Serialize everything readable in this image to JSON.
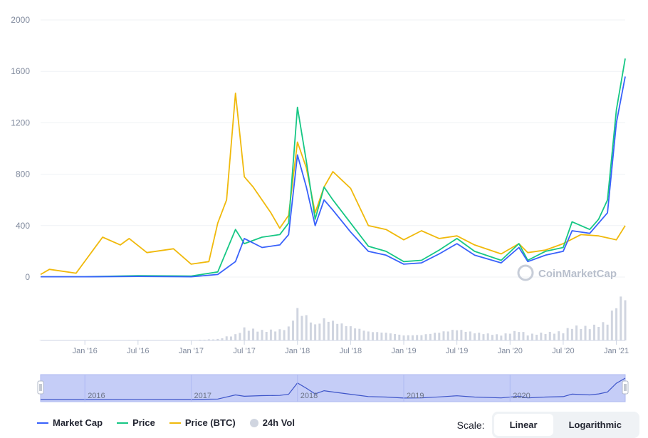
{
  "chart_data": {
    "type": "line",
    "yticks": [
      "2000",
      "1600",
      "1200",
      "800",
      "400",
      "0"
    ],
    "ylim": [
      0,
      2000
    ],
    "x_range": [
      "2015-08",
      "2021-02"
    ],
    "xticks": [
      "Jan '16",
      "Jul '16",
      "Jan '17",
      "Jul '17",
      "Jan '18",
      "Jul '18",
      "Jan '19",
      "Jul '19",
      "Jan '20",
      "Jul '20",
      "Jan '21"
    ],
    "navigator_ticks": [
      "2016",
      "2017",
      "2018",
      "2019",
      "2020"
    ],
    "grid": true,
    "legend_position": "bottom-left",
    "series": [
      {
        "name": "Market Cap",
        "color": "#3861fb",
        "x": [
          "2015-08",
          "2016-01",
          "2016-07",
          "2017-01",
          "2017-04",
          "2017-06",
          "2017-07",
          "2017-09",
          "2017-11",
          "2017-12",
          "2018-01",
          "2018-02",
          "2018-03",
          "2018-04",
          "2018-05",
          "2018-07",
          "2018-09",
          "2018-11",
          "2019-01",
          "2019-03",
          "2019-05",
          "2019-07",
          "2019-09",
          "2019-12",
          "2020-02",
          "2020-03",
          "2020-05",
          "2020-07",
          "2020-08",
          "2020-10",
          "2020-11",
          "2020-12",
          "2021-01",
          "2021-02"
        ],
        "values": [
          2,
          2,
          5,
          2,
          20,
          120,
          300,
          230,
          250,
          330,
          950,
          700,
          400,
          600,
          520,
          350,
          200,
          170,
          100,
          110,
          180,
          260,
          170,
          110,
          230,
          120,
          170,
          200,
          360,
          340,
          420,
          500,
          1200,
          1560
        ]
      },
      {
        "name": "Price",
        "color": "#16c784",
        "x": [
          "2015-08",
          "2016-01",
          "2016-07",
          "2017-01",
          "2017-04",
          "2017-06",
          "2017-07",
          "2017-09",
          "2017-11",
          "2017-12",
          "2018-01",
          "2018-02",
          "2018-03",
          "2018-04",
          "2018-05",
          "2018-07",
          "2018-09",
          "2018-11",
          "2019-01",
          "2019-03",
          "2019-05",
          "2019-07",
          "2019-09",
          "2019-12",
          "2020-02",
          "2020-03",
          "2020-05",
          "2020-07",
          "2020-08",
          "2020-10",
          "2020-11",
          "2020-12",
          "2021-01",
          "2021-02"
        ],
        "values": [
          2,
          2,
          10,
          8,
          40,
          370,
          260,
          310,
          330,
          420,
          1320,
          900,
          450,
          700,
          600,
          420,
          240,
          200,
          120,
          130,
          210,
          300,
          200,
          130,
          260,
          130,
          200,
          230,
          430,
          370,
          450,
          600,
          1300,
          1700
        ]
      },
      {
        "name": "Price (BTC)",
        "color": "#f0b90b",
        "x": [
          "2015-08",
          "2015-09",
          "2015-12",
          "2016-03",
          "2016-05",
          "2016-06",
          "2016-08",
          "2016-11",
          "2017-01",
          "2017-03",
          "2017-04",
          "2017-05",
          "2017-06",
          "2017-07",
          "2017-08",
          "2017-10",
          "2017-11",
          "2017-12",
          "2018-01",
          "2018-02",
          "2018-03",
          "2018-04",
          "2018-05",
          "2018-07",
          "2018-09",
          "2018-11",
          "2019-01",
          "2019-03",
          "2019-05",
          "2019-07",
          "2019-09",
          "2019-12",
          "2020-02",
          "2020-03",
          "2020-05",
          "2020-07",
          "2020-09",
          "2020-11",
          "2021-01",
          "2021-02"
        ],
        "values": [
          20,
          60,
          30,
          310,
          250,
          300,
          190,
          220,
          100,
          120,
          420,
          600,
          1430,
          780,
          700,
          500,
          380,
          480,
          1050,
          850,
          500,
          700,
          820,
          690,
          400,
          370,
          290,
          360,
          300,
          320,
          250,
          180,
          260,
          190,
          210,
          260,
          330,
          320,
          290,
          400
        ]
      }
    ],
    "volume_label": "24h Vol"
  },
  "watermark": "CoinMarketCap",
  "legend": [
    "Market Cap",
    "Price",
    "Price (BTC)",
    "24h Vol"
  ],
  "scale": {
    "label": "Scale:",
    "options": [
      "Linear",
      "Logarithmic"
    ],
    "selected": "Linear"
  }
}
